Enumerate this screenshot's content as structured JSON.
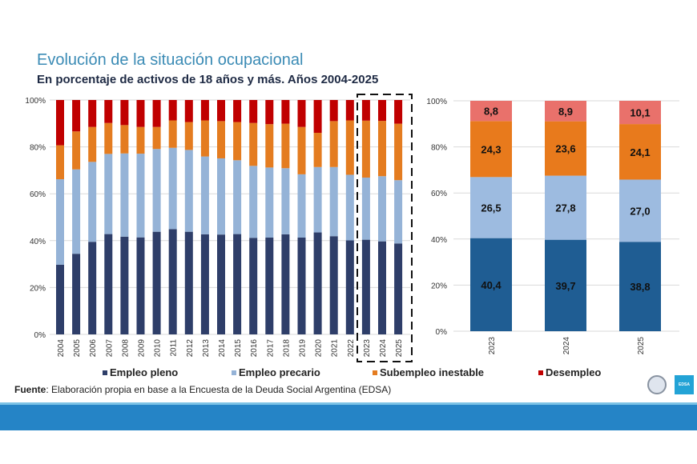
{
  "title": "Evolución de la situación ocupacional",
  "subtitle": "En porcentaje de activos de 18 años y más. Años 2004-2025",
  "legend": [
    {
      "label": "Empleo pleno",
      "color": "#2e3e69"
    },
    {
      "label": "Empleo precario",
      "color": "#95b3d7"
    },
    {
      "label": "Subempleo inestable",
      "color": "#e47c20"
    },
    {
      "label": "Desempleo",
      "color": "#c00000"
    }
  ],
  "source": {
    "label": "Fuente",
    "text": ": Elaboración propia en base a la Encuesta de la Deuda Social Argentina (EDSA)"
  },
  "logos": {
    "edsa": "EDSA"
  },
  "chart_data": [
    {
      "type": "bar",
      "stacked": true,
      "percent": true,
      "categories": [
        "2004",
        "2005",
        "2006",
        "2007",
        "2008",
        "2009",
        "2010",
        "2011",
        "2012",
        "2013",
        "2014",
        "2015",
        "2016",
        "2017",
        "2018",
        "2019",
        "2020",
        "2021",
        "2022",
        "2023",
        "2024",
        "2025"
      ],
      "ylim": [
        0,
        100
      ],
      "yticks": [
        "0%",
        "20%",
        "40%",
        "60%",
        "80%",
        "100%"
      ],
      "grid": true,
      "highlight": [
        "2023",
        "2024",
        "2025"
      ],
      "series": [
        {
          "name": "Empleo pleno",
          "color": "#2e3e69",
          "values": [
            29.7,
            34.4,
            39.5,
            42.8,
            41.7,
            41.4,
            43.8,
            44.9,
            43.8,
            42.7,
            42.6,
            42.8,
            41.2,
            41.3,
            42.7,
            41.3,
            43.5,
            41.9,
            40.1,
            40.4,
            39.7,
            38.8
          ]
        },
        {
          "name": "Empleo precario",
          "color": "#95b3d7",
          "values": [
            36.5,
            36.0,
            34.1,
            34.2,
            35.5,
            35.7,
            35.3,
            34.7,
            34.9,
            33.2,
            32.5,
            31.5,
            30.7,
            29.9,
            28.2,
            27.0,
            27.9,
            29.5,
            28.0,
            26.5,
            27.8,
            27.0
          ]
        },
        {
          "name": "Subempleo inestable",
          "color": "#e47c20",
          "values": [
            14.5,
            16.2,
            14.9,
            13.2,
            12.1,
            11.4,
            9.4,
            11.7,
            11.9,
            15.4,
            15.9,
            16.3,
            18.3,
            18.5,
            19.0,
            20.2,
            14.6,
            19.6,
            23.2,
            24.3,
            23.6,
            24.1
          ]
        },
        {
          "name": "Desempleo",
          "color": "#c00000",
          "values": [
            19.3,
            13.4,
            11.5,
            9.8,
            10.7,
            11.5,
            11.5,
            8.7,
            9.4,
            8.7,
            9.0,
            9.4,
            9.8,
            10.3,
            10.1,
            11.5,
            14.0,
            9.0,
            8.7,
            8.8,
            8.9,
            10.1
          ]
        }
      ]
    },
    {
      "type": "bar",
      "stacked": true,
      "percent": true,
      "categories": [
        "2023",
        "2024",
        "2025"
      ],
      "ylim": [
        0,
        100
      ],
      "yticks": [
        "0%",
        "20%",
        "40%",
        "60%",
        "80%",
        "100%"
      ],
      "grid": true,
      "series": [
        {
          "name": "Empleo pleno",
          "color": "#1f5d93",
          "values": [
            40.4,
            39.7,
            38.8
          ],
          "labels": [
            "40,4",
            "39,7",
            "38,8"
          ]
        },
        {
          "name": "Empleo precario",
          "color": "#9dbbe0",
          "values": [
            26.5,
            27.8,
            27.0
          ],
          "labels": [
            "26,5",
            "27,8",
            "27,0"
          ]
        },
        {
          "name": "Subempleo inestable",
          "color": "#e87a1c",
          "values": [
            24.3,
            23.6,
            24.1
          ],
          "labels": [
            "24,3",
            "23,6",
            "24,1"
          ]
        },
        {
          "name": "Desempleo",
          "color": "#e9716b",
          "values": [
            8.8,
            8.9,
            10.1
          ],
          "labels": [
            "8,8",
            "8,9",
            "10,1"
          ]
        }
      ]
    }
  ]
}
